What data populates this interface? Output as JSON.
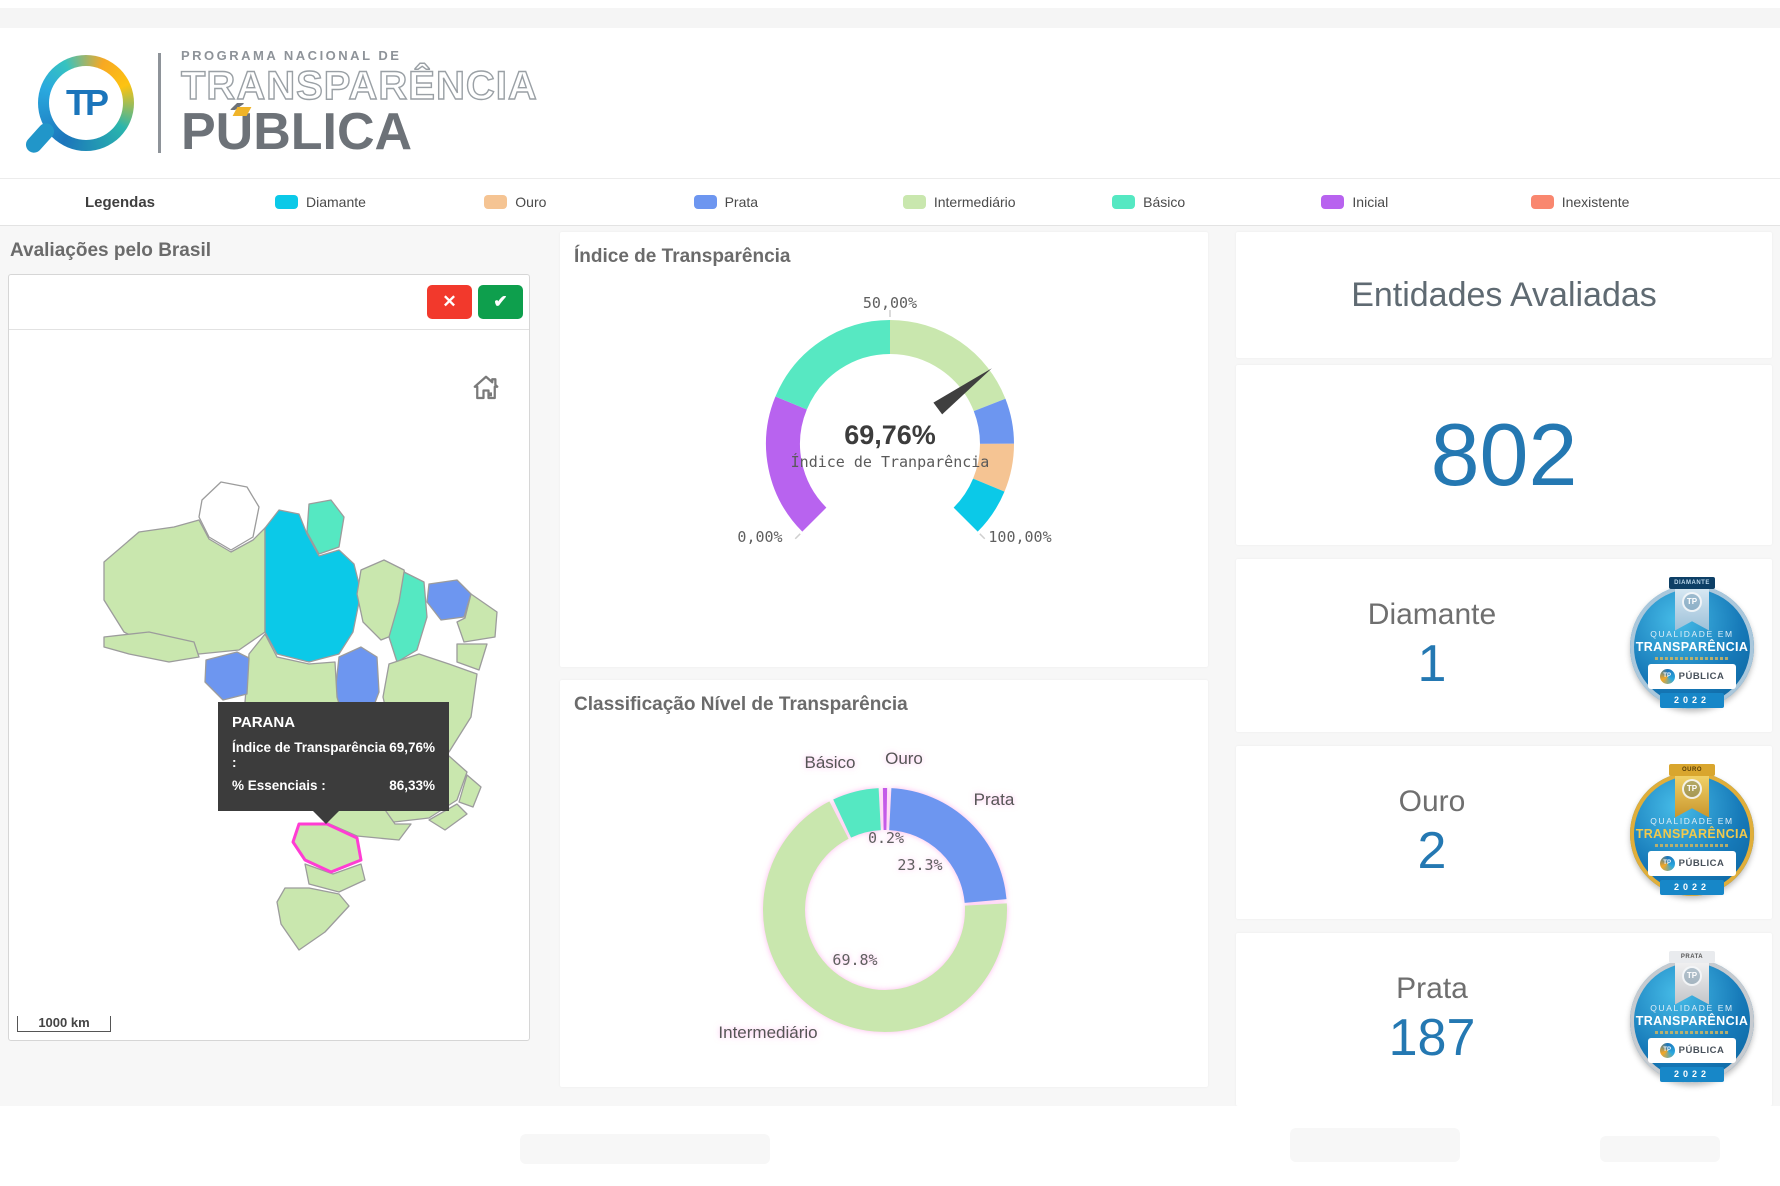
{
  "header": {
    "logo_text": "TP",
    "program_line1": "PROGRAMA NACIONAL DE",
    "program_line2": "TRANSPARÊNCIA",
    "program_line3": "PÚBLICA"
  },
  "legend": {
    "title": "Legendas",
    "tier_colors": {
      "diamante": "#0bc9e8",
      "ouro": "#f5c493",
      "prata": "#6d96f0",
      "intermediario": "#c9e7ae",
      "basico": "#55e8c2",
      "inicial": "#b863ef",
      "inexistente": "#f9876f",
      "none": "#ffffff"
    },
    "items": [
      {
        "label": "Diamante",
        "tier": "diamante"
      },
      {
        "label": "Ouro",
        "tier": "ouro"
      },
      {
        "label": "Prata",
        "tier": "prata"
      },
      {
        "label": "Intermediário",
        "tier": "intermediario"
      },
      {
        "label": "Básico",
        "tier": "basico"
      },
      {
        "label": "Inicial",
        "tier": "inicial"
      },
      {
        "label": "Inexistente",
        "tier": "inexistente"
      }
    ]
  },
  "map_panel": {
    "title": "Avaliações pelo Brasil",
    "cancel_button": "✕",
    "confirm_button": "✔",
    "scale_label": "1000 km",
    "selected_state_stroke": "#ff3dd3",
    "border_color": "#9c9c9c",
    "tooltip": {
      "state": "PARANA",
      "row1_label": "Índice de Transparência :",
      "row1_value": "69,76%",
      "row2_label": "% Essenciais :",
      "row2_value": "86,33%"
    },
    "states": [
      {
        "id": "roraima",
        "tier": "none"
      },
      {
        "id": "amapa",
        "tier": "basico"
      },
      {
        "id": "amazonas",
        "tier": "intermediario"
      },
      {
        "id": "para",
        "tier": "diamante"
      },
      {
        "id": "maranhao",
        "tier": "intermediario"
      },
      {
        "id": "piaui",
        "tier": "basico"
      },
      {
        "id": "tocantins",
        "tier": "prata"
      },
      {
        "id": "ceara",
        "tier": "prata"
      },
      {
        "id": "ne-coast",
        "tier": "intermediario"
      },
      {
        "id": "sergipe-alagoas",
        "tier": "intermediario"
      },
      {
        "id": "bahia",
        "tier": "intermediario"
      },
      {
        "id": "mato-grosso",
        "tier": "intermediario"
      },
      {
        "id": "rondonia",
        "tier": "prata"
      },
      {
        "id": "acre",
        "tier": "intermediario"
      },
      {
        "id": "goias",
        "tier": "intermediario"
      },
      {
        "id": "minas-gerais",
        "tier": "intermediario"
      },
      {
        "id": "espirito-santo",
        "tier": "intermediario"
      },
      {
        "id": "rio-de-janeiro",
        "tier": "intermediario"
      },
      {
        "id": "mato-grosso-do-sul",
        "tier": "prata"
      },
      {
        "id": "sao-paulo",
        "tier": "intermediario"
      },
      {
        "id": "parana",
        "tier": "intermediario",
        "selected": true
      },
      {
        "id": "santa-catarina",
        "tier": "intermediario"
      },
      {
        "id": "rio-grande-do-sul",
        "tier": "intermediario"
      }
    ]
  },
  "chart_data": [
    {
      "type": "gauge",
      "title": "Índice de Transparência",
      "value": 69.76,
      "value_label": "69,76%",
      "center_caption": "Índice de Tranparência",
      "min": 0,
      "max": 100,
      "min_label": "0,00%",
      "mid_label": "50,00%",
      "max_label": "100,00%",
      "needle_color": "#3f3f3f",
      "segments": [
        {
          "from": 0,
          "to": 25,
          "color": "#b863ef"
        },
        {
          "from": 25,
          "to": 50,
          "color": "#57e8c2"
        },
        {
          "from": 50,
          "to": 75.4,
          "color": "#c9e7ae"
        },
        {
          "from": 75.4,
          "to": 83.3,
          "color": "#6d96f0"
        },
        {
          "from": 83.3,
          "to": 91.7,
          "color": "#f5c493"
        },
        {
          "from": 91.7,
          "to": 100,
          "color": "#0bc9e8"
        }
      ]
    },
    {
      "type": "donut",
      "title": "Classificação Nível de Transparência",
      "glow_color": "rgba(255,128,222,0.55)",
      "slices": [
        {
          "label": "Ouro",
          "value": 0.2,
          "display": "0.2%",
          "color": "#c45be8"
        },
        {
          "label": "Prata",
          "value": 23.3,
          "display": "23.3%",
          "color": "#6d96f0"
        },
        {
          "label": "Intermediário",
          "value": 69.8,
          "display": "69.8%",
          "color": "#c9e7ae"
        },
        {
          "label": "Básico",
          "value": 6.7,
          "display": "",
          "color": "#55e8c2"
        }
      ]
    }
  ],
  "right_panel": {
    "title": "Entidades Avaliadas",
    "total": "802",
    "badge": {
      "line1": "QUALIDADE EM",
      "line2": "TRANSPARÊNCIA",
      "box_label": "PÚBLICA",
      "year": "2022",
      "tp": "TP"
    },
    "tiers": [
      {
        "label": "Diamante",
        "value": "1",
        "banner": "DIAMANTE"
      },
      {
        "label": "Ouro",
        "value": "2",
        "banner": "OURO"
      },
      {
        "label": "Prata",
        "value": "187",
        "banner": "PRATA"
      }
    ]
  }
}
